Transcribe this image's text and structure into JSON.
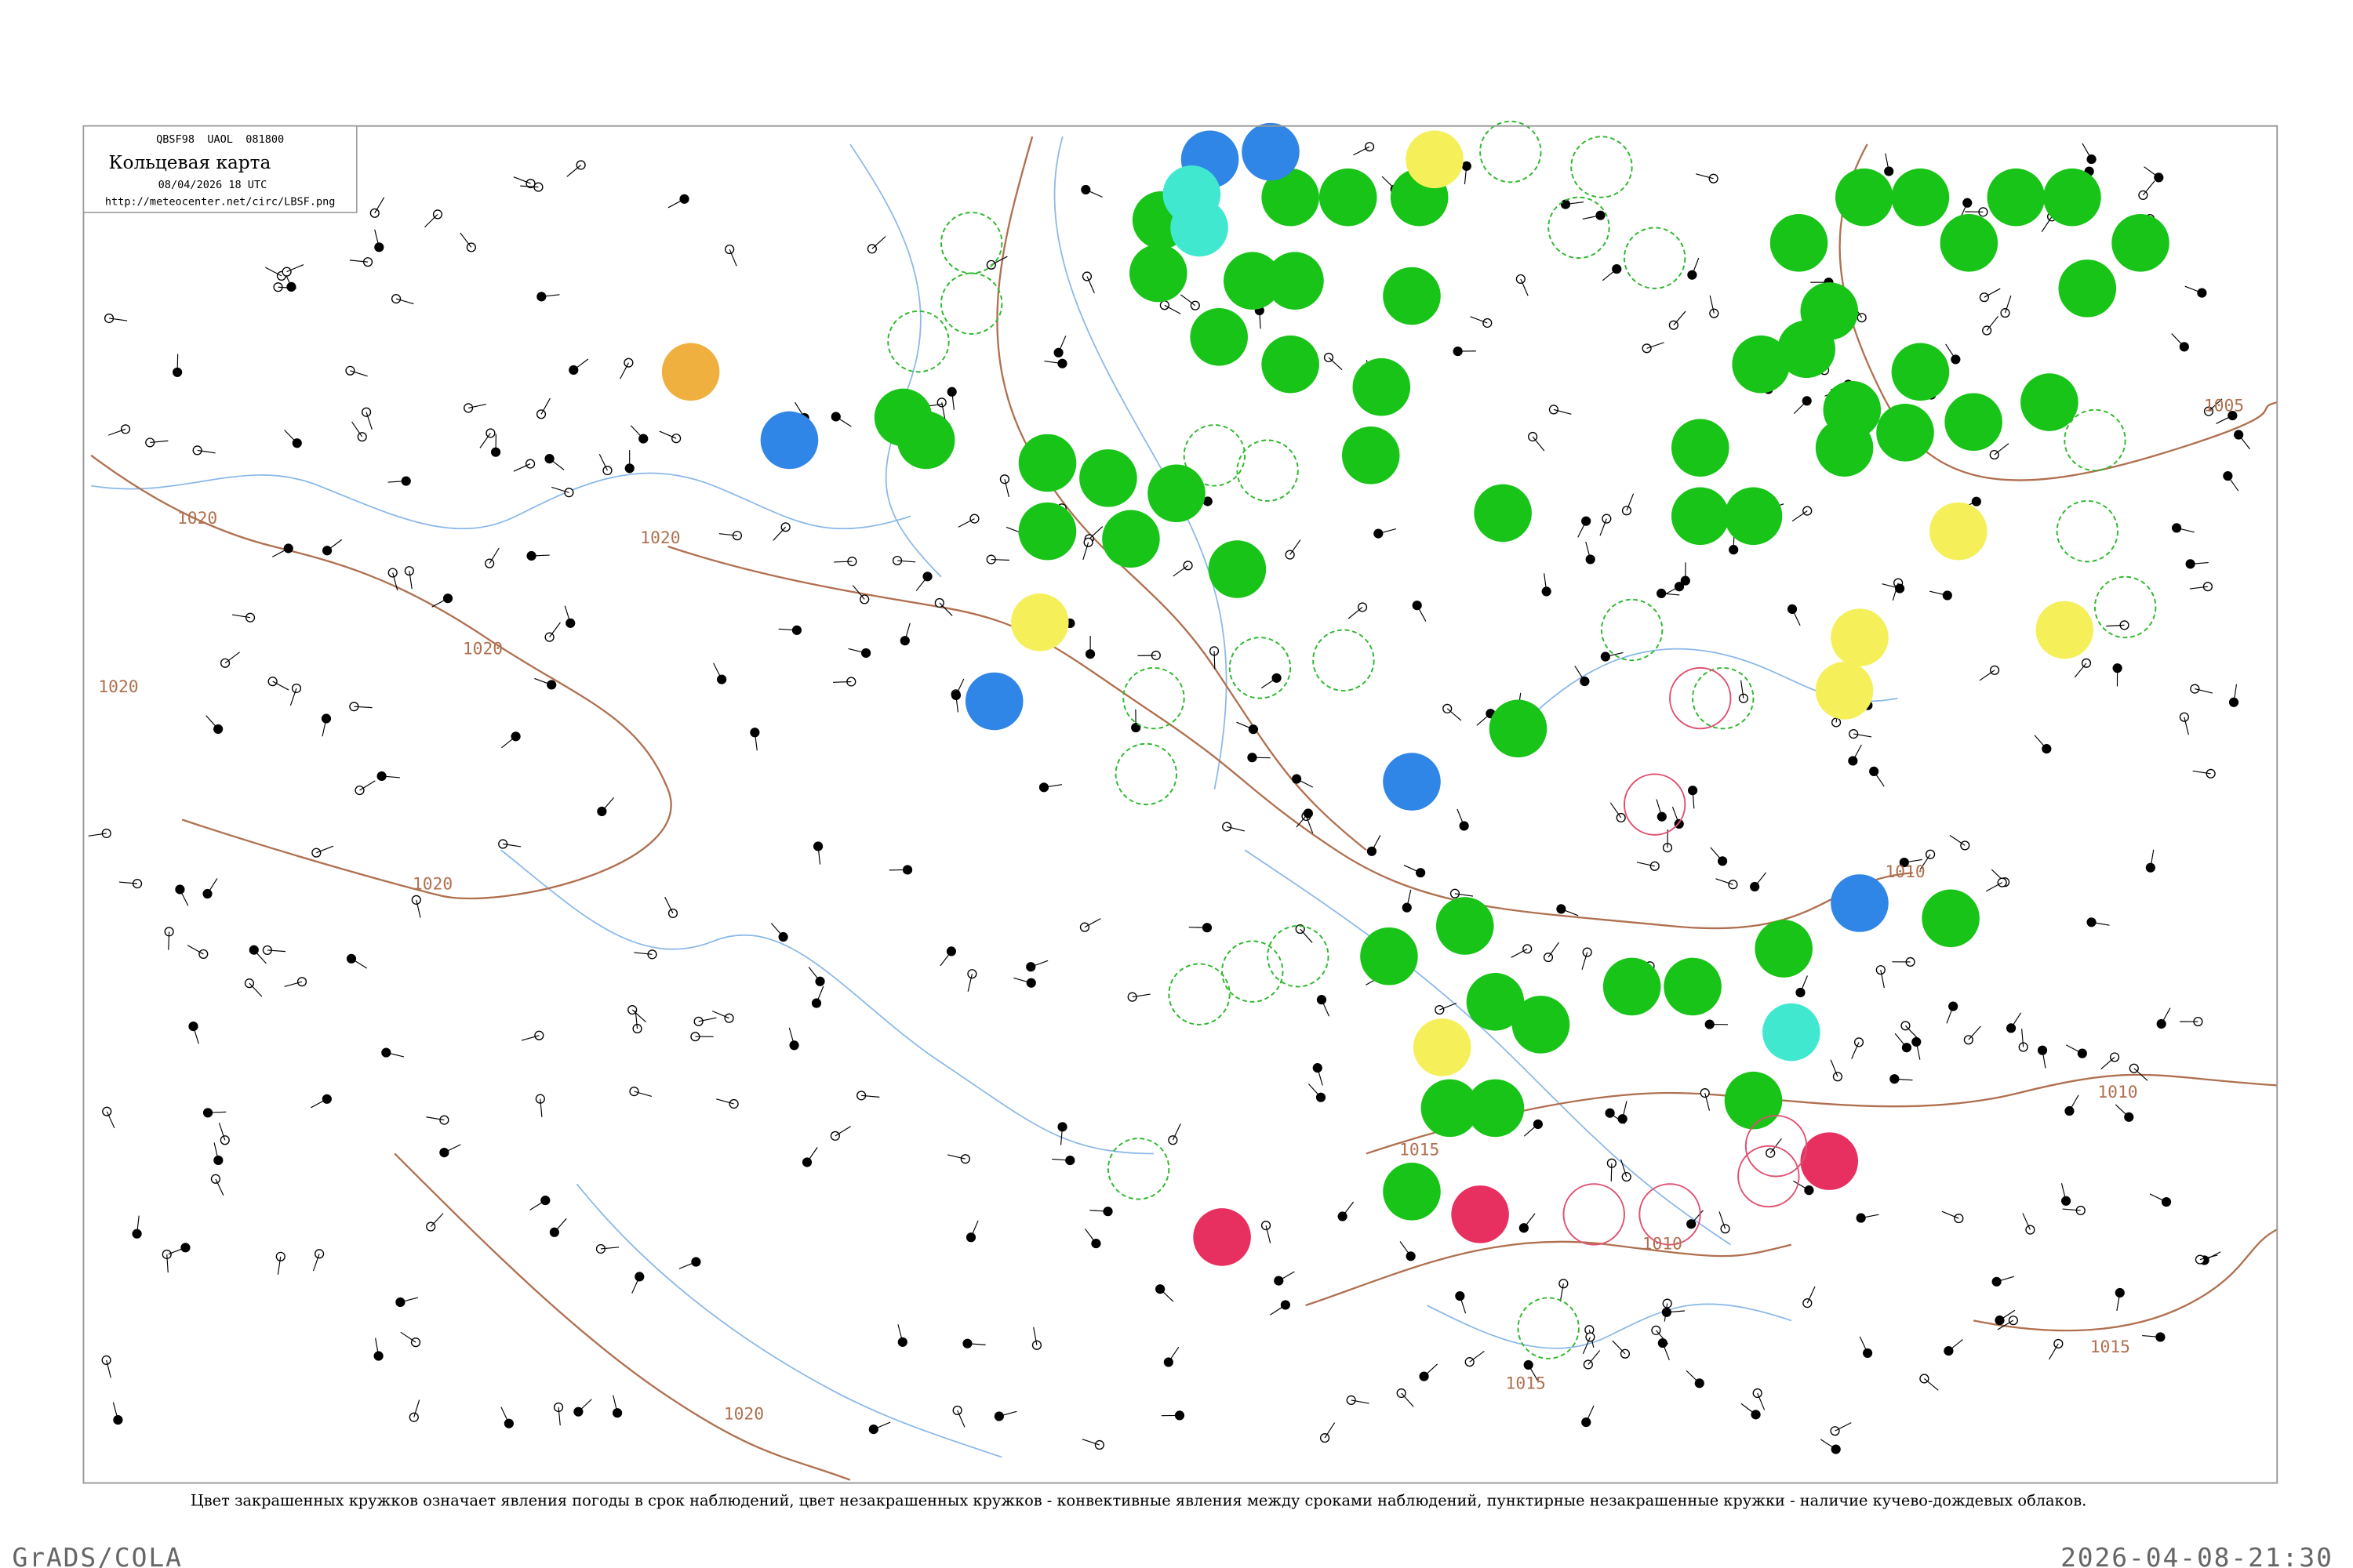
{
  "header": {
    "codes": "QBSF98  UAOL  081800",
    "title": "Кольцевая карта",
    "date": "08/04/2026 18 UTC",
    "url": "http://meteocenter.net/circ/LBSF.png"
  },
  "isobars": [
    {
      "label": "1020"
    },
    {
      "label": "1020"
    },
    {
      "label": "1020"
    },
    {
      "label": "1020"
    },
    {
      "label": "1020"
    },
    {
      "label": "1005"
    },
    {
      "label": "1010"
    },
    {
      "label": "1010"
    },
    {
      "label": "1015"
    },
    {
      "label": "1010"
    },
    {
      "label": "1015"
    },
    {
      "label": "1015"
    },
    {
      "label": "1020"
    }
  ],
  "caption": "Цвет закрашенных кружков означает явления погоды в срок наблюдений, цвет незакрашенных кружков - конвективные явления между сроками наблюдений, пунктирные незакрашенные кружки - наличие кучево-дождевых облаков.",
  "footer": {
    "left": "GrADS/COLA",
    "right": "2026-04-08-21:30"
  }
}
